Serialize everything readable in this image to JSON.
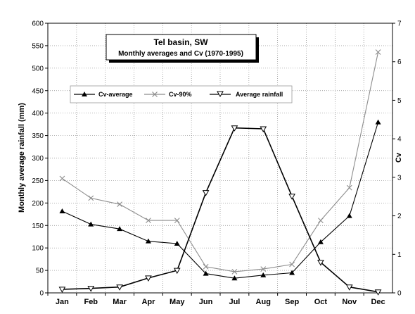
{
  "chart_data": {
    "type": "line",
    "title": "Tel basin, SW",
    "subtitle": "Monthly averages and Cv (1970-1995)",
    "xlabel": "",
    "ylabel": "Monthly average rainfall (mm)",
    "y2label": "Cv",
    "categories": [
      "Jan",
      "Feb",
      "Mar",
      "Apr",
      "May",
      "Jun",
      "Jul",
      "Aug",
      "Sep",
      "Oct",
      "Nov",
      "Dec"
    ],
    "ylim": [
      0,
      600
    ],
    "yticks": [
      "0",
      "50",
      "100",
      "150",
      "200",
      "250",
      "300",
      "350",
      "400",
      "450",
      "500",
      "550",
      "600"
    ],
    "y2lim": [
      0,
      7
    ],
    "y2ticks": [
      "0",
      "1",
      "2",
      "3",
      "4",
      "5",
      "6",
      "7"
    ],
    "grid": true,
    "legend_position": "upper-left",
    "series": [
      {
        "name": "Cv-average",
        "axis": "right",
        "color": "#000000",
        "marker": "filled-triangle",
        "values": [
          2.12,
          1.78,
          1.66,
          1.34,
          1.28,
          0.5,
          0.38,
          0.46,
          0.52,
          1.32,
          2.0,
          4.43
        ]
      },
      {
        "name": "Cv-90%",
        "axis": "right",
        "color": "#8c8c8c",
        "marker": "x",
        "values": [
          2.97,
          2.46,
          2.3,
          1.88,
          1.88,
          0.68,
          0.55,
          0.62,
          0.74,
          1.88,
          2.73,
          6.25
        ]
      },
      {
        "name": "Average rainfall",
        "axis": "left",
        "color": "#000000",
        "marker": "open-down-triangle",
        "values": [
          8,
          10,
          13,
          33,
          50,
          223,
          367,
          365,
          215,
          68,
          13,
          2
        ]
      }
    ]
  }
}
